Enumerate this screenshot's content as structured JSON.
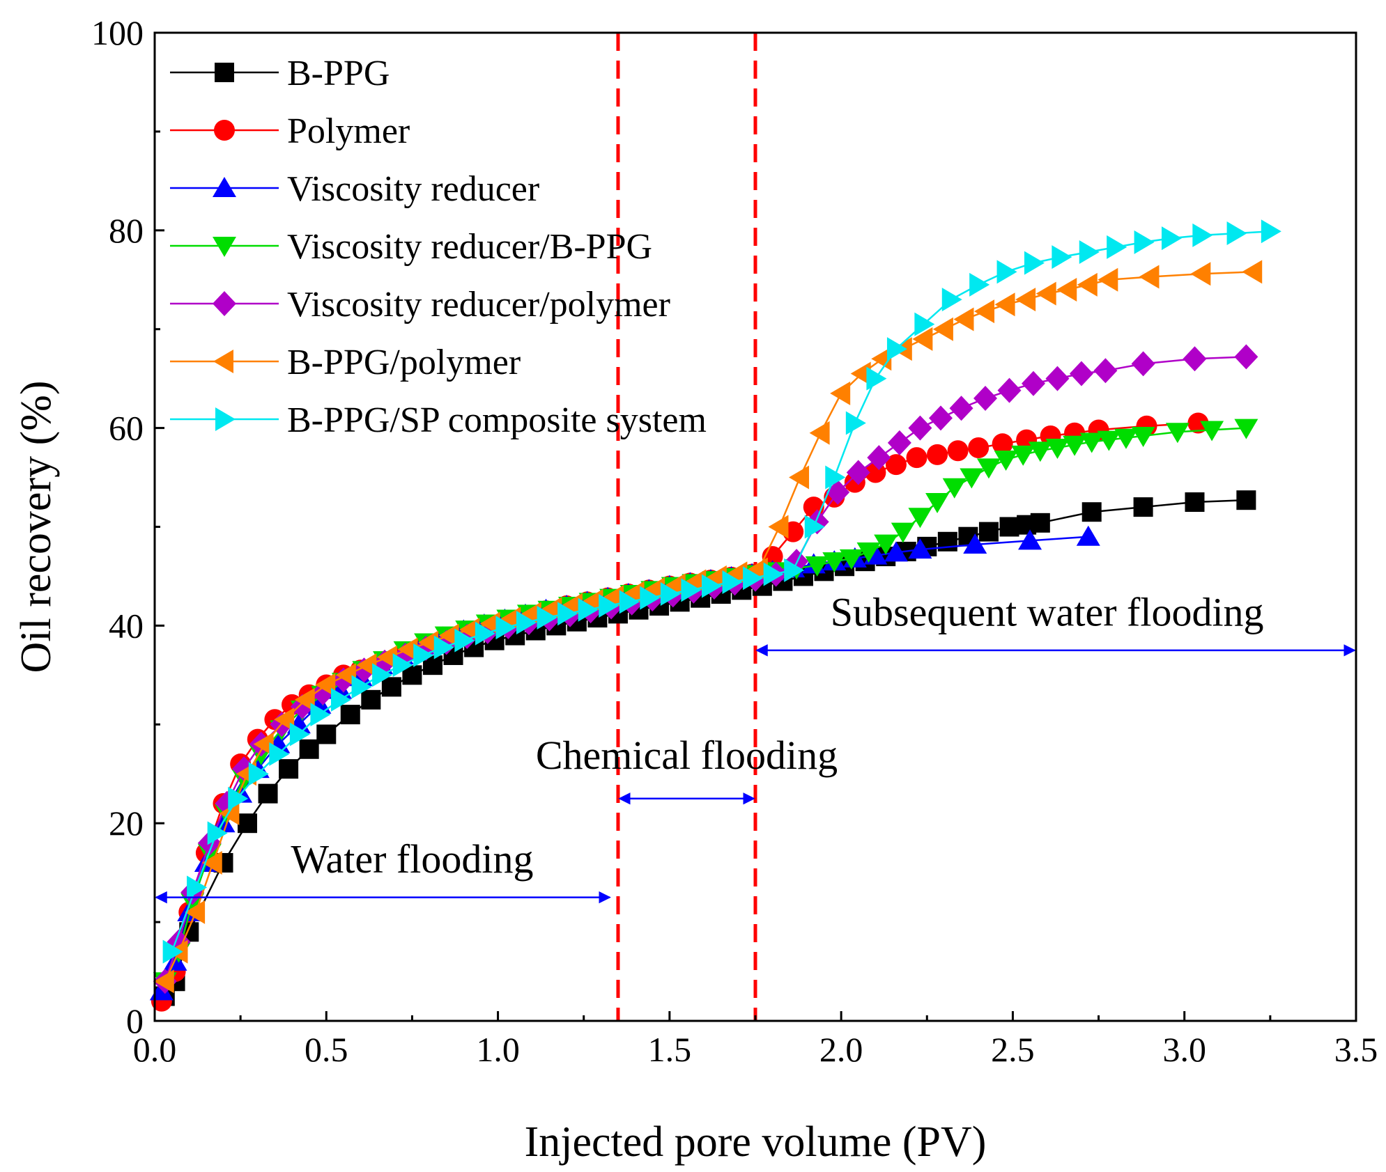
{
  "chart_data": {
    "type": "line",
    "title": "",
    "xlabel": "Injected pore volume (PV)",
    "ylabel": "Oil recovery (%)",
    "xlim": [
      0.0,
      3.5
    ],
    "ylim": [
      0,
      100
    ],
    "xticks": [
      0.0,
      0.5,
      1.0,
      1.5,
      2.0,
      2.5,
      3.0,
      3.5
    ],
    "xtick_labels": [
      "0.0",
      "0.5",
      "1.0",
      "1.5",
      "2.0",
      "2.5",
      "3.0",
      "3.5"
    ],
    "yticks": [
      0,
      20,
      40,
      60,
      80,
      100
    ],
    "ytick_labels": [
      "0",
      "20",
      "40",
      "60",
      "80",
      "100"
    ],
    "grid": false,
    "legend_position": "top-left",
    "phase_boundaries": [
      1.35,
      1.75
    ],
    "annotations": [
      {
        "text": "Water flooding",
        "x": 0.75,
        "y": 15,
        "arrow": [
          0.0,
          1.33
        ],
        "arrow_y": 12.5
      },
      {
        "text": "Chemical flooding",
        "x": 1.55,
        "y": 25.5,
        "arrow": [
          1.35,
          1.75
        ],
        "arrow_y": 22.5
      },
      {
        "text": "Subsequent water flooding",
        "x": 2.6,
        "y": 40,
        "arrow": [
          1.75,
          3.5
        ],
        "arrow_y": 37.5
      }
    ],
    "series": [
      {
        "name": "B-PPG",
        "color": "#000000",
        "marker": "square",
        "x": [
          0.03,
          0.06,
          0.1,
          0.2,
          0.27,
          0.33,
          0.39,
          0.45,
          0.5,
          0.57,
          0.63,
          0.69,
          0.75,
          0.81,
          0.87,
          0.93,
          0.99,
          1.05,
          1.11,
          1.17,
          1.23,
          1.29,
          1.35,
          1.41,
          1.47,
          1.53,
          1.59,
          1.65,
          1.71,
          1.77,
          1.83,
          1.89,
          1.95,
          2.01,
          2.07,
          2.13,
          2.19,
          2.25,
          2.31,
          2.37,
          2.43,
          2.49,
          2.54,
          2.58,
          2.73,
          2.88,
          3.03,
          3.18
        ],
        "y": [
          2.5,
          4,
          9,
          16,
          20,
          23,
          25.5,
          27.5,
          29,
          31,
          32.5,
          33.8,
          35,
          36,
          37,
          37.8,
          38.5,
          39,
          39.5,
          40,
          40.4,
          40.8,
          41.2,
          41.6,
          42,
          42.4,
          42.8,
          43.2,
          43.6,
          44,
          44.5,
          45,
          45.5,
          46,
          46.5,
          47,
          47.5,
          48,
          48.5,
          49,
          49.5,
          50,
          50.2,
          50.4,
          51.5,
          52,
          52.5,
          52.7
        ]
      },
      {
        "name": "Polymer",
        "color": "#ff0000",
        "marker": "circle",
        "x": [
          0.02,
          0.06,
          0.1,
          0.15,
          0.2,
          0.25,
          0.3,
          0.35,
          0.4,
          0.45,
          0.5,
          0.55,
          0.6,
          0.66,
          0.72,
          0.78,
          0.84,
          0.9,
          0.96,
          1.02,
          1.08,
          1.14,
          1.2,
          1.26,
          1.32,
          1.38,
          1.44,
          1.5,
          1.56,
          1.62,
          1.68,
          1.74,
          1.8,
          1.86,
          1.92,
          1.98,
          2.04,
          2.1,
          2.16,
          2.22,
          2.28,
          2.34,
          2.4,
          2.47,
          2.54,
          2.61,
          2.68,
          2.75,
          2.89,
          3.04
        ],
        "y": [
          2,
          5,
          11,
          17,
          22,
          26,
          28.5,
          30.5,
          32,
          33,
          34,
          35,
          35.5,
          36.2,
          37,
          37.8,
          38.5,
          39.2,
          39.8,
          40.4,
          41,
          41.5,
          42,
          42.4,
          42.8,
          43.2,
          43.6,
          44,
          44.3,
          44.6,
          44.9,
          45.2,
          47,
          49.5,
          52,
          53,
          54.5,
          55.5,
          56.3,
          57,
          57.3,
          57.7,
          58,
          58.4,
          58.8,
          59.2,
          59.5,
          59.8,
          60.2,
          60.5
        ]
      },
      {
        "name": "Viscosity reducer",
        "color": "#0000ff",
        "marker": "triangle-up",
        "x": [
          0.02,
          0.06,
          0.1,
          0.15,
          0.2,
          0.25,
          0.3,
          0.36,
          0.42,
          0.48,
          0.54,
          0.6,
          0.66,
          0.72,
          0.78,
          0.84,
          0.9,
          0.96,
          1.02,
          1.08,
          1.14,
          1.2,
          1.26,
          1.32,
          1.38,
          1.44,
          1.5,
          1.56,
          1.62,
          1.68,
          1.74,
          1.8,
          1.86,
          1.92,
          1.98,
          2.04,
          2.1,
          2.16,
          2.23,
          2.39,
          2.55,
          2.72
        ],
        "y": [
          3,
          6,
          11,
          16,
          20,
          23,
          25.5,
          28,
          30,
          32,
          33.5,
          34.8,
          36,
          37,
          38,
          38.8,
          39.5,
          40.1,
          40.6,
          41.1,
          41.6,
          42,
          42.4,
          42.8,
          43.2,
          43.6,
          44,
          44.3,
          44.6,
          44.9,
          45.2,
          45.5,
          45.8,
          46.2,
          46.5,
          46.8,
          47.1,
          47.4,
          47.7,
          48.2,
          48.6,
          49
        ]
      },
      {
        "name": "Viscosity reducer/B-PPG",
        "color": "#00dd00",
        "marker": "triangle-down",
        "x": [
          0.03,
          0.07,
          0.11,
          0.16,
          0.21,
          0.26,
          0.31,
          0.37,
          0.43,
          0.49,
          0.55,
          0.61,
          0.67,
          0.73,
          0.79,
          0.85,
          0.91,
          0.97,
          1.03,
          1.09,
          1.15,
          1.21,
          1.27,
          1.33,
          1.39,
          1.45,
          1.51,
          1.57,
          1.63,
          1.69,
          1.75,
          1.81,
          1.87,
          1.93,
          1.98,
          2.03,
          2.08,
          2.13,
          2.18,
          2.23,
          2.28,
          2.33,
          2.38,
          2.43,
          2.48,
          2.53,
          2.58,
          2.63,
          2.68,
          2.73,
          2.78,
          2.83,
          2.88,
          2.98,
          3.08,
          3.18
        ],
        "y": [
          4,
          7,
          12,
          17,
          21,
          24.5,
          27,
          29.5,
          31.5,
          33,
          34.3,
          35.5,
          36.5,
          37.5,
          38.3,
          39,
          39.6,
          40.2,
          40.7,
          41.2,
          41.6,
          42,
          42.4,
          42.8,
          43.2,
          43.6,
          44,
          44.3,
          44.6,
          44.9,
          45.2,
          45.5,
          45.8,
          46.1,
          46.5,
          46.8,
          47.5,
          48.3,
          49.5,
          51,
          52.5,
          54,
          55,
          56,
          56.8,
          57.3,
          57.7,
          58,
          58.3,
          58.6,
          58.8,
          59,
          59.2,
          59.6,
          59.8,
          60
        ]
      },
      {
        "name": "Viscosity reducer/polymer",
        "color": "#b000c8",
        "marker": "diamond",
        "x": [
          0.03,
          0.07,
          0.11,
          0.16,
          0.21,
          0.26,
          0.31,
          0.37,
          0.43,
          0.49,
          0.55,
          0.61,
          0.67,
          0.73,
          0.79,
          0.85,
          0.91,
          0.97,
          1.03,
          1.09,
          1.15,
          1.21,
          1.27,
          1.33,
          1.39,
          1.45,
          1.51,
          1.57,
          1.63,
          1.69,
          1.75,
          1.81,
          1.87,
          1.93,
          1.99,
          2.05,
          2.11,
          2.17,
          2.23,
          2.29,
          2.35,
          2.42,
          2.49,
          2.56,
          2.63,
          2.7,
          2.77,
          2.88,
          3.03,
          3.18
        ],
        "y": [
          4,
          8,
          13,
          18,
          22,
          25.5,
          28,
          30,
          31.8,
          33.2,
          34.5,
          35.5,
          36.3,
          37,
          37.7,
          38.3,
          38.9,
          39.4,
          39.9,
          40.3,
          40.7,
          41.1,
          41.5,
          41.9,
          42.3,
          42.7,
          43.1,
          43.5,
          43.9,
          44.3,
          44.7,
          45.2,
          46.5,
          50.5,
          53.5,
          55.5,
          57,
          58.5,
          60,
          61,
          62,
          63,
          63.8,
          64.5,
          65,
          65.5,
          65.8,
          66.5,
          67,
          67.2
        ]
      },
      {
        "name": "B-PPG/polymer",
        "color": "#ff8000",
        "marker": "triangle-left",
        "x": [
          0.03,
          0.07,
          0.12,
          0.17,
          0.22,
          0.27,
          0.32,
          0.38,
          0.44,
          0.5,
          0.56,
          0.62,
          0.68,
          0.74,
          0.8,
          0.86,
          0.92,
          0.98,
          1.04,
          1.1,
          1.16,
          1.22,
          1.28,
          1.34,
          1.4,
          1.46,
          1.52,
          1.58,
          1.64,
          1.7,
          1.76,
          1.82,
          1.88,
          1.94,
          2.0,
          2.06,
          2.12,
          2.18,
          2.24,
          2.3,
          2.36,
          2.42,
          2.48,
          2.54,
          2.6,
          2.66,
          2.72,
          2.78,
          2.9,
          3.05,
          3.2
        ],
        "y": [
          4,
          7,
          11,
          16,
          21,
          25,
          28,
          30.5,
          32.5,
          34,
          35,
          36,
          36.8,
          37.6,
          38.3,
          39,
          39.6,
          40.2,
          40.7,
          41.2,
          41.7,
          42.1,
          42.5,
          42.9,
          43.3,
          43.7,
          44.1,
          44.5,
          44.9,
          45.3,
          45.7,
          50,
          55,
          59.5,
          63.5,
          65.5,
          67,
          68,
          69,
          70,
          71,
          71.8,
          72.5,
          73,
          73.6,
          74,
          74.5,
          75,
          75.3,
          75.6,
          75.8
        ]
      },
      {
        "name": "B-PPG/SP composite system",
        "color": "#00e8f0",
        "marker": "triangle-right",
        "x": [
          0.05,
          0.12,
          0.18,
          0.24,
          0.3,
          0.36,
          0.42,
          0.48,
          0.54,
          0.6,
          0.66,
          0.72,
          0.78,
          0.84,
          0.9,
          0.96,
          1.02,
          1.08,
          1.14,
          1.2,
          1.26,
          1.32,
          1.38,
          1.44,
          1.5,
          1.56,
          1.62,
          1.68,
          1.74,
          1.8,
          1.86,
          1.92,
          1.98,
          2.04,
          2.1,
          2.16,
          2.24,
          2.32,
          2.4,
          2.48,
          2.56,
          2.64,
          2.72,
          2.8,
          2.88,
          2.96,
          3.05,
          3.15,
          3.25
        ],
        "y": [
          7,
          13.5,
          19,
          22.5,
          25,
          27,
          29,
          31,
          32.5,
          33.8,
          35,
          36,
          37,
          37.8,
          38.5,
          39.2,
          39.8,
          40.3,
          40.8,
          41.2,
          41.6,
          42,
          42.4,
          42.8,
          43.2,
          43.6,
          44,
          44.4,
          44.8,
          45.2,
          45.6,
          50,
          55,
          60.5,
          65,
          68,
          70.5,
          73,
          74.5,
          75.8,
          76.7,
          77.3,
          77.8,
          78.3,
          78.8,
          79.2,
          79.5,
          79.7,
          79.9
        ]
      }
    ]
  }
}
